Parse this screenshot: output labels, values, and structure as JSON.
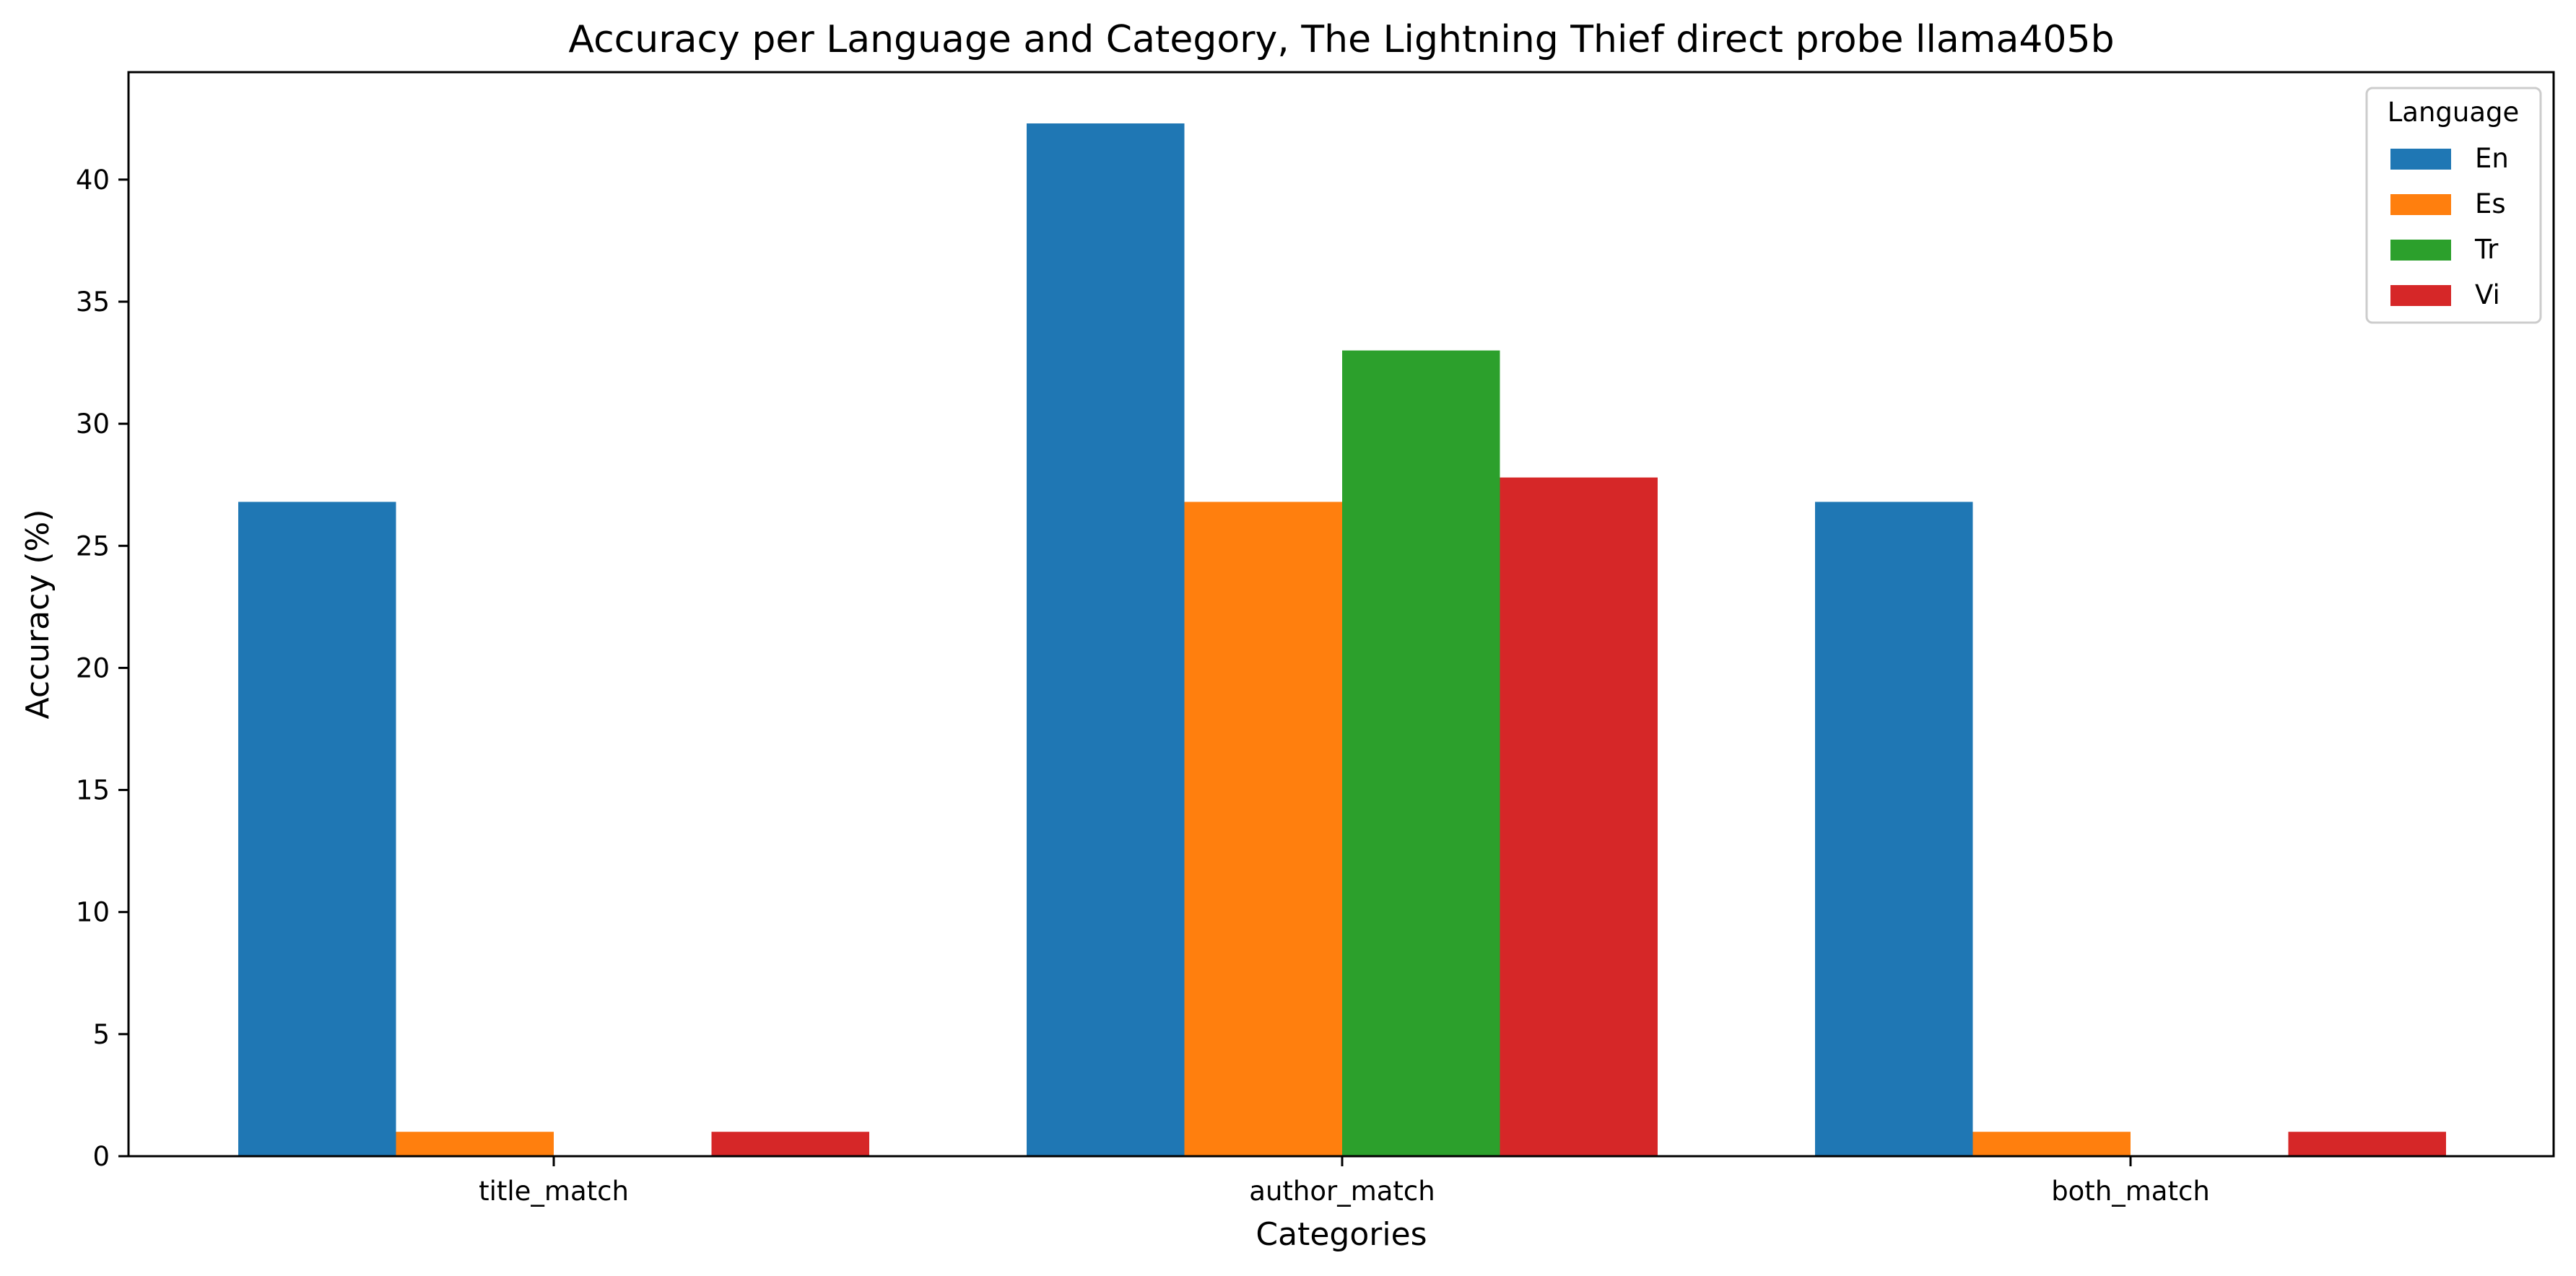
{
  "chart_data": {
    "type": "bar",
    "title": "Accuracy per Language and Category, The Lightning Thief direct probe llama405b",
    "xlabel": "Categories",
    "ylabel": "Accuracy (%)",
    "categories": [
      "title_match",
      "author_match",
      "both_match"
    ],
    "ylim": [
      0,
      44.4
    ],
    "yticks": [
      0,
      5,
      10,
      15,
      20,
      25,
      30,
      35,
      40
    ],
    "grid": false,
    "legend": {
      "title": "Language",
      "placement": "top-right"
    },
    "series": [
      {
        "name": "En",
        "color": "#1f77b4",
        "values": [
          26.8,
          42.3,
          26.8
        ]
      },
      {
        "name": "Es",
        "color": "#ff7f0e",
        "values": [
          1.0,
          26.8,
          1.0
        ]
      },
      {
        "name": "Tr",
        "color": "#2ca02c",
        "values": [
          0,
          33.0,
          0
        ]
      },
      {
        "name": "Vi",
        "color": "#d62728",
        "values": [
          1.0,
          27.8,
          1.0
        ]
      }
    ]
  }
}
